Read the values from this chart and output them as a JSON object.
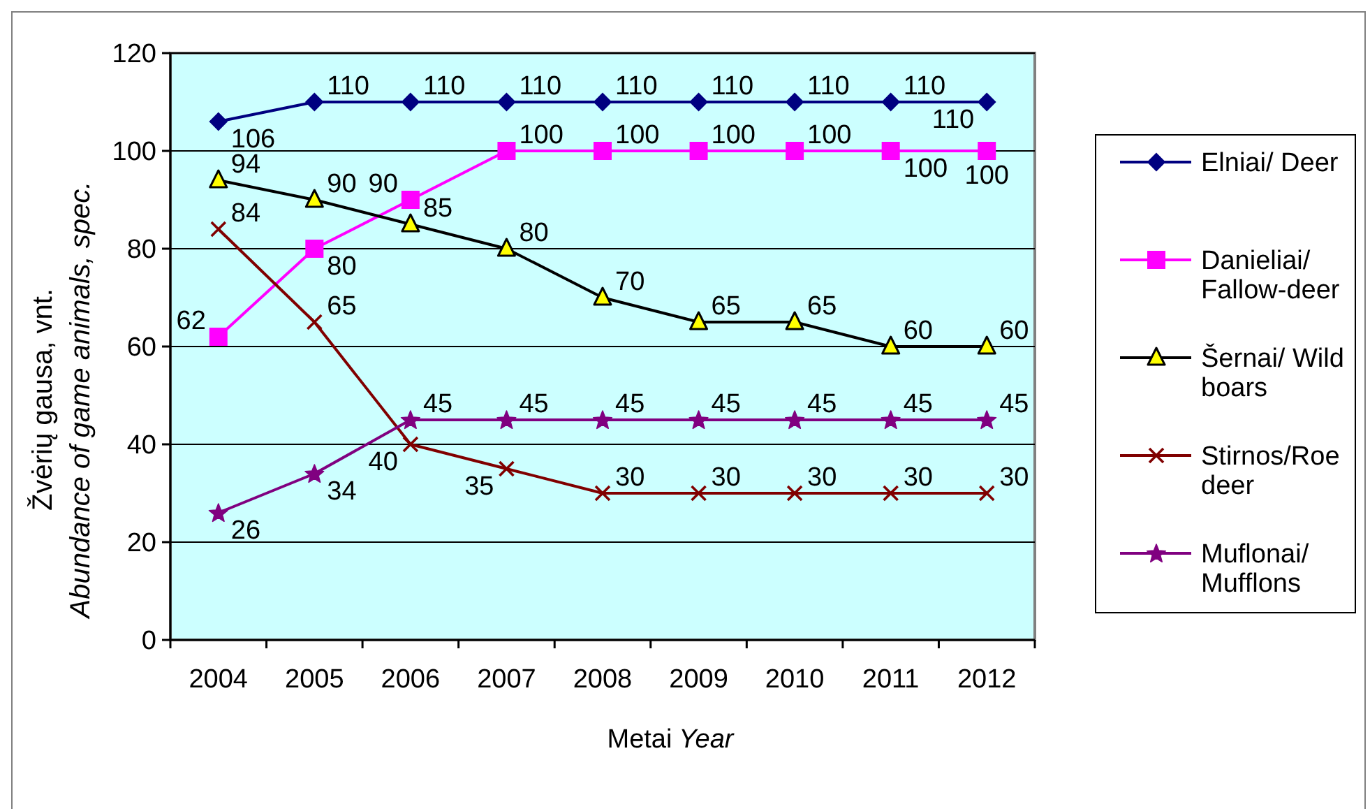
{
  "chart_data": {
    "type": "line",
    "ylabel": "Žvėrių gausa, vnt.\nAbundance of game animals, spec.",
    "xlabel": "Metai Year",
    "categories": [
      "2004",
      "2005",
      "2006",
      "2007",
      "2008",
      "2009",
      "2010",
      "2011",
      "2012"
    ],
    "ylim": [
      0,
      120
    ],
    "yticks": [
      0,
      20,
      40,
      60,
      80,
      100,
      120
    ],
    "grid": "y",
    "legend": "right",
    "data_labels": true,
    "line_style": "solid",
    "series": [
      {
        "name": "Elniai/ Deer",
        "color": "#000080",
        "marker": "diamond",
        "values": [
          106,
          110,
          110,
          110,
          110,
          110,
          110,
          110,
          110
        ]
      },
      {
        "name": "Danieliai/ Fallow-deer",
        "color": "#ff00ff",
        "marker": "square",
        "values": [
          62,
          80,
          90,
          100,
          100,
          100,
          100,
          100,
          100
        ]
      },
      {
        "name": "Šernai/ Wild boars",
        "color": "#000000",
        "colors": [
          "#ffff00",
          "#ffff00",
          "#ffff00",
          "#ffff00",
          "#ffff00",
          "#ffff00",
          "#ffff00",
          "#ffff00",
          "#ffff00"
        ],
        "marker": "triangle",
        "values": [
          94,
          90,
          85,
          80,
          70,
          65,
          65,
          60,
          60
        ]
      },
      {
        "name": "Stirnos/Roe deer",
        "color": "#800000",
        "marker": "cross",
        "values": [
          84,
          65,
          40,
          35,
          30,
          30,
          30,
          30,
          30
        ]
      },
      {
        "name": "Muflonai/ Mufflons",
        "color": "#800080",
        "marker": "star",
        "values": [
          26,
          34,
          45,
          45,
          45,
          45,
          45,
          45,
          45
        ]
      }
    ]
  }
}
